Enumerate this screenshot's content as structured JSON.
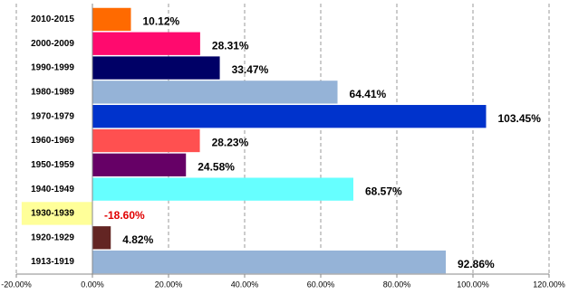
{
  "chart_data": {
    "type": "bar",
    "orientation": "horizontal",
    "categories": [
      "2010-2015",
      "2000-2009",
      "1990-1999",
      "1980-1989",
      "1970-1979",
      "1960-1969",
      "1950-1959",
      "1940-1949",
      "1930-1939",
      "1920-1929",
      "1913-1919"
    ],
    "values": [
      10.12,
      28.31,
      33.47,
      64.41,
      103.45,
      28.23,
      24.58,
      68.57,
      -18.6,
      4.82,
      92.86
    ],
    "value_labels": [
      "10.12%",
      "28.31%",
      "33.47%",
      "64.41%",
      "103.45%",
      "28.23%",
      "24.58%",
      "68.57%",
      "-18.60%",
      "4.82%",
      "92.86%"
    ],
    "colors": [
      "#ff6a00",
      "#ff0a6e",
      "#000066",
      "#95b3d7",
      "#0033cc",
      "#ff5050",
      "#660066",
      "#66ffff",
      "#ffff99",
      "#632523",
      "#95b3d7"
    ],
    "negative_label_color": "#e00000",
    "xlim": [
      -20,
      120
    ],
    "xticks": [
      {
        "value": -20,
        "label": "-20.00%"
      },
      {
        "value": 0,
        "label": "0.00%"
      },
      {
        "value": 20,
        "label": "20.00%"
      },
      {
        "value": 40,
        "label": "40.00%"
      },
      {
        "value": 60,
        "label": "60.00%"
      },
      {
        "value": 80,
        "label": "80.00%"
      },
      {
        "value": 100,
        "label": "100.00%"
      },
      {
        "value": 120,
        "label": "120.00%"
      }
    ],
    "grid": true
  }
}
